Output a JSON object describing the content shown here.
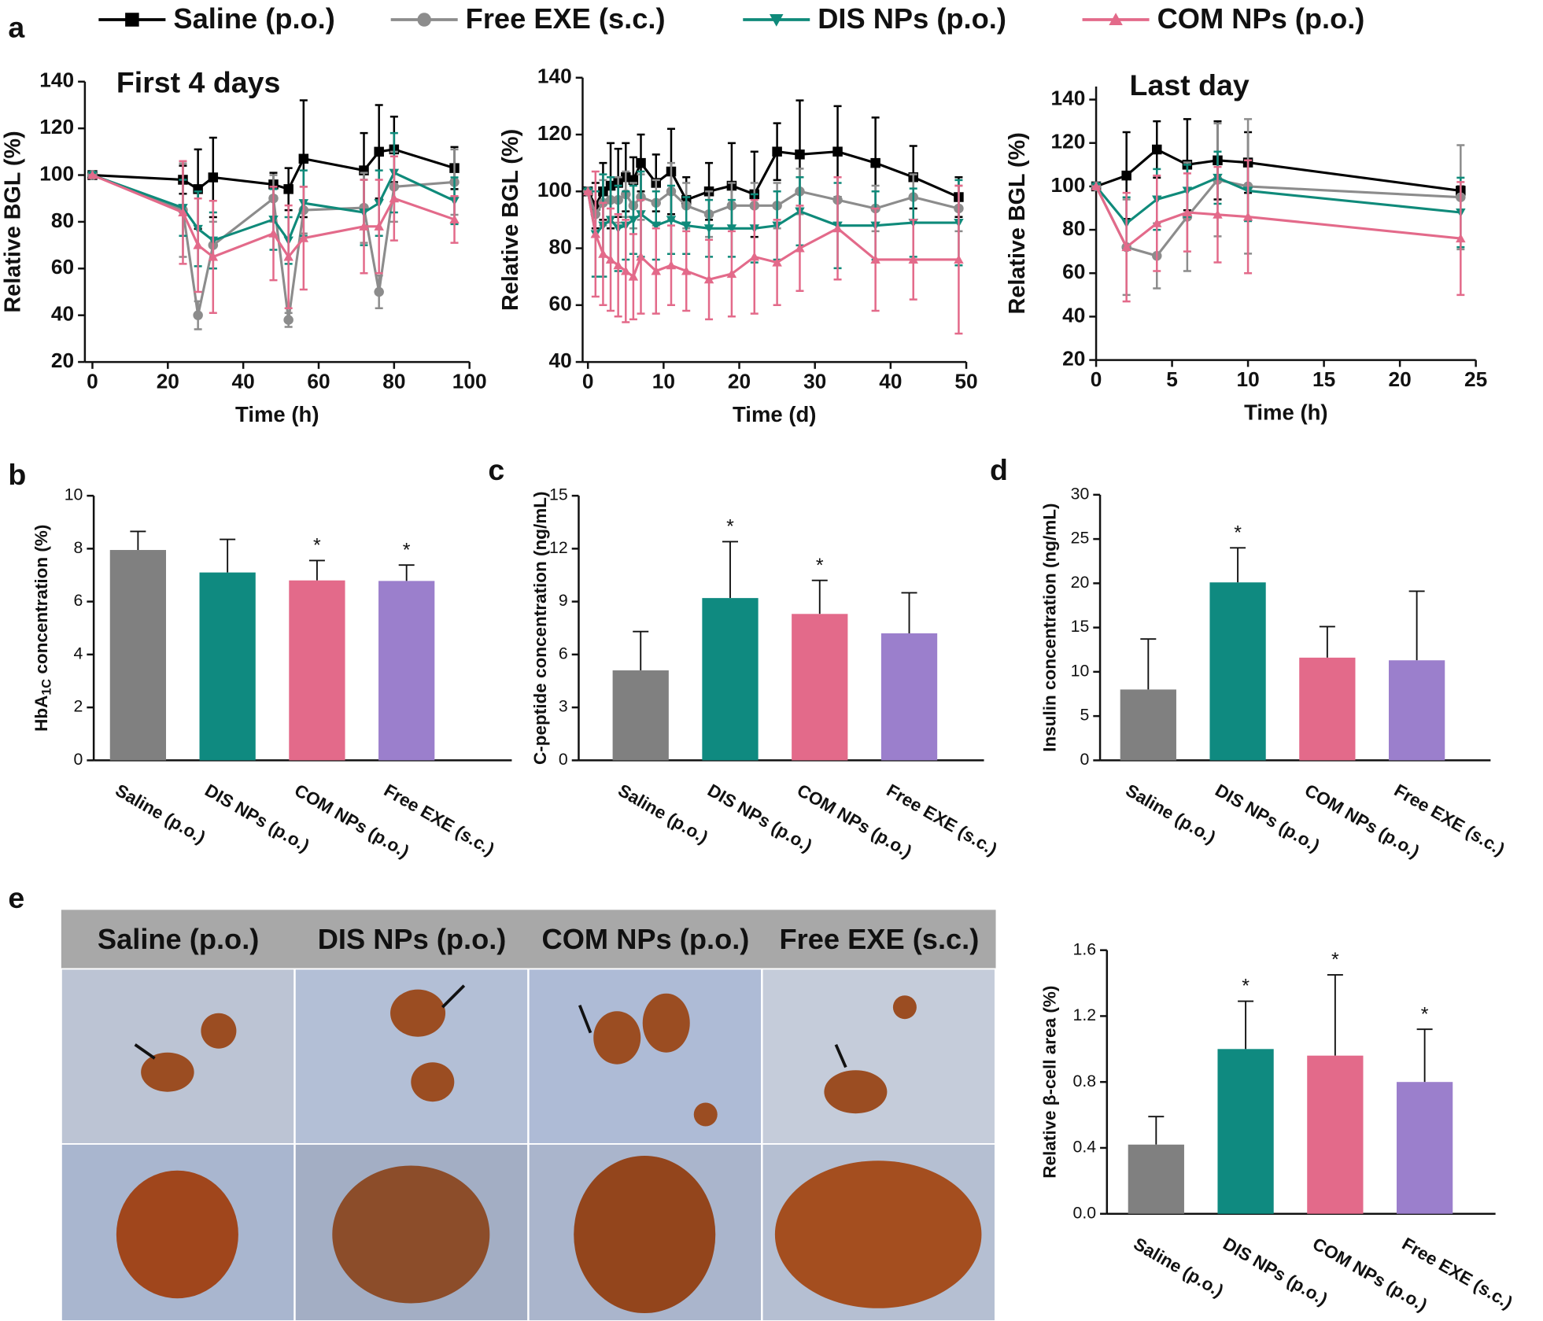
{
  "chart_data": [
    {
      "type": "line",
      "panel_label": "a",
      "title": "First 4 days",
      "xlabel": "Time (h)",
      "ylabel": "Relative BGL (%)",
      "x": [
        0,
        24,
        28,
        32,
        48,
        52,
        56,
        72,
        76,
        80,
        96
      ],
      "xlim": [
        -2,
        100
      ],
      "xticks": [
        0,
        20,
        40,
        60,
        80,
        100
      ],
      "ylim": [
        20,
        140
      ],
      "yticks": [
        20,
        40,
        60,
        80,
        100,
        120,
        140
      ],
      "series": [
        {
          "name": "Saline (p.o.)",
          "color": "#000000",
          "marker": "square",
          "values": [
            100,
            98,
            94,
            99,
            96,
            94,
            107,
            102,
            110,
            111,
            103
          ],
          "errors": [
            0,
            6,
            17,
            17,
            5,
            9,
            25,
            16,
            20,
            14,
            9
          ]
        },
        {
          "name": "Free EXE (s.c.)",
          "color": "#8c8c8c",
          "marker": "circle",
          "values": [
            100,
            85,
            40,
            70,
            90,
            38,
            85,
            86,
            50,
            95,
            97
          ],
          "errors": [
            0,
            20,
            6,
            10,
            10,
            3,
            10,
            15,
            7,
            15,
            14
          ]
        },
        {
          "name": "DIS NPs (p.o.)",
          "color": "#0f8a7a",
          "marker": "triangle-down",
          "values": [
            100,
            86,
            77,
            72,
            81,
            72,
            88,
            84,
            88,
            101,
            89
          ],
          "errors": [
            0,
            12,
            16,
            12,
            13,
            10,
            14,
            14,
            14,
            17,
            10
          ]
        },
        {
          "name": "COM NPs (p.o.)",
          "color": "#e36a8a",
          "marker": "triangle-up",
          "values": [
            100,
            84,
            70,
            65,
            75,
            65,
            73,
            78,
            78,
            90,
            81
          ],
          "errors": [
            0,
            22,
            20,
            24,
            20,
            22,
            22,
            20,
            20,
            18,
            10
          ]
        }
      ]
    },
    {
      "type": "line",
      "xlabel": "Time (d)",
      "ylabel": "Relative BGL (%)",
      "x": [
        0,
        1,
        2,
        3,
        4,
        5,
        6,
        7,
        9,
        11,
        13,
        16,
        19,
        22,
        25,
        28,
        33,
        38,
        43,
        49
      ],
      "xlim": [
        -0.7,
        50
      ],
      "xticks": [
        0,
        10,
        20,
        30,
        40,
        50
      ],
      "ylim": [
        40,
        140
      ],
      "yticks": [
        40,
        60,
        80,
        100,
        120,
        140
      ],
      "series": [
        {
          "color": "#000000",
          "marker": "square",
          "values": [
            100,
            95,
            100,
            102,
            103,
            105,
            104,
            110,
            103,
            107,
            97,
            100,
            102,
            99,
            114,
            113,
            114,
            110,
            105,
            98
          ],
          "errors": [
            0,
            8,
            10,
            15,
            12,
            12,
            8,
            10,
            10,
            15,
            8,
            10,
            15,
            15,
            10,
            19,
            16,
            16,
            11,
            7
          ]
        },
        {
          "color": "#8c8c8c",
          "marker": "circle",
          "values": [
            100,
            92,
            96,
            97,
            97,
            99,
            95,
            98,
            96,
            100,
            95,
            92,
            95,
            95,
            95,
            100,
            97,
            94,
            98,
            94
          ],
          "errors": [
            0,
            8,
            8,
            8,
            8,
            8,
            8,
            8,
            8,
            10,
            8,
            8,
            8,
            8,
            8,
            8,
            8,
            8,
            8,
            8
          ]
        },
        {
          "color": "#0f8a7a",
          "marker": "triangle-down",
          "values": [
            100,
            85,
            88,
            90,
            87,
            88,
            90,
            92,
            88,
            90,
            88,
            87,
            87,
            87,
            88,
            93,
            88,
            88,
            89,
            89
          ],
          "errors": [
            0,
            15,
            18,
            15,
            15,
            12,
            12,
            15,
            12,
            12,
            10,
            10,
            10,
            12,
            12,
            12,
            15,
            12,
            12,
            15
          ]
        },
        {
          "color": "#e36a8a",
          "marker": "triangle-up",
          "values": [
            100,
            85,
            78,
            76,
            74,
            72,
            70,
            77,
            72,
            74,
            72,
            69,
            71,
            77,
            75,
            80,
            87,
            76,
            76,
            76
          ],
          "errors": [
            0,
            22,
            18,
            18,
            18,
            18,
            15,
            20,
            15,
            14,
            14,
            14,
            15,
            20,
            15,
            15,
            18,
            18,
            14,
            26
          ]
        }
      ]
    },
    {
      "type": "line",
      "title": "Last day",
      "xlabel": "Time (h)",
      "ylabel": "Relative BGL (%)",
      "x": [
        0,
        2,
        4,
        6,
        8,
        10,
        24
      ],
      "xlim": [
        0,
        25
      ],
      "xticks": [
        0,
        5,
        10,
        15,
        20,
        25
      ],
      "ylim": [
        20,
        146
      ],
      "yticks": [
        20,
        40,
        60,
        80,
        100,
        120,
        140
      ],
      "series": [
        {
          "color": "#000000",
          "marker": "square",
          "values": [
            100,
            105,
            117,
            110,
            112,
            111,
            98
          ],
          "errors": [
            0,
            20,
            13,
            21,
            18,
            14,
            2
          ]
        },
        {
          "color": "#8c8c8c",
          "marker": "circle",
          "values": [
            100,
            72,
            68,
            86,
            103,
            100,
            95
          ],
          "errors": [
            0,
            22,
            15,
            25,
            26,
            31,
            24
          ]
        },
        {
          "color": "#0f8a7a",
          "marker": "triangle-down",
          "values": [
            100,
            83,
            94,
            98,
            104,
            98,
            88
          ],
          "errors": [
            0,
            12,
            14,
            12,
            12,
            14,
            16
          ]
        },
        {
          "color": "#e36a8a",
          "marker": "triangle-up",
          "values": [
            100,
            72,
            83,
            88,
            87,
            86,
            76
          ],
          "errors": [
            0,
            25,
            22,
            18,
            22,
            26,
            26
          ]
        }
      ]
    },
    {
      "type": "bar",
      "panel_label": "b",
      "ylabel": {
        "text": "HbA",
        "sub": "1C",
        "rest": " concentration (%)"
      },
      "categories": [
        "Saline (p.o.)",
        "DIS NPs (p.o.)",
        "COM NPs (p.o.)",
        "Free EXE (s.c.)"
      ],
      "values": [
        7.95,
        7.1,
        6.8,
        6.78
      ],
      "errors": [
        0.7,
        1.25,
        0.75,
        0.6
      ],
      "significance": [
        null,
        null,
        "*",
        "*"
      ],
      "colors": [
        "#808080",
        "#0f8a80",
        "#e36a8a",
        "#9b7fcc"
      ],
      "ylim": [
        0,
        10
      ],
      "yticks": [
        0,
        2,
        4,
        6,
        8,
        10
      ]
    },
    {
      "type": "bar",
      "panel_label": "c",
      "ylabel": "C-peptide concentration (ng/mL)",
      "categories": [
        "Saline (p.o.)",
        "DIS NPs (p.o.)",
        "COM NPs (p.o.)",
        "Free EXE (s.c.)"
      ],
      "values": [
        5.1,
        9.2,
        8.3,
        7.2
      ],
      "errors": [
        2.2,
        3.2,
        1.9,
        2.3
      ],
      "significance": [
        null,
        "*",
        "*",
        null
      ],
      "colors": [
        "#808080",
        "#0f8a80",
        "#e36a8a",
        "#9b7fcc"
      ],
      "ylim": [
        0,
        15
      ],
      "yticks": [
        0,
        3,
        6,
        9,
        12,
        15
      ]
    },
    {
      "type": "bar",
      "panel_label": "d",
      "ylabel": "Insulin concentration (ng/mL)",
      "categories": [
        "Saline (p.o.)",
        "DIS NPs (p.o.)",
        "COM NPs (p.o.)",
        "Free EXE (s.c.)"
      ],
      "values": [
        8.0,
        20.1,
        11.6,
        11.3
      ],
      "errors": [
        5.7,
        3.9,
        3.5,
        7.8
      ],
      "significance": [
        null,
        "*",
        null,
        null
      ],
      "colors": [
        "#808080",
        "#0f8a80",
        "#e36a8a",
        "#9b7fcc"
      ],
      "ylim": [
        0,
        30
      ],
      "yticks": [
        0,
        5,
        10,
        15,
        20,
        25,
        30
      ]
    },
    {
      "type": "bar",
      "ylabel": "Relative β-cell area (%)",
      "categories": [
        "Saline (p.o.)",
        "DIS NPs (p.o.)",
        "COM NPs (p.o.)",
        "Free EXE (s.c.)"
      ],
      "values": [
        0.42,
        1.0,
        0.96,
        0.8
      ],
      "errors": [
        0.17,
        0.29,
        0.49,
        0.32
      ],
      "significance": [
        null,
        "*",
        "*",
        "*"
      ],
      "colors": [
        "#808080",
        "#0f8a80",
        "#e36a8a",
        "#9b7fcc"
      ],
      "ylim": [
        0,
        1.6
      ],
      "yticks": [
        {
          "value": 0,
          "label": "0.0"
        },
        0.4,
        0.8,
        1.2,
        1.6
      ]
    }
  ],
  "histology": {
    "panel_label": "e",
    "headers": [
      "Saline (p.o.)",
      "DIS NPs (p.o.)",
      "COM NPs (p.o.)",
      "Free EXE (s.c.)"
    ]
  }
}
